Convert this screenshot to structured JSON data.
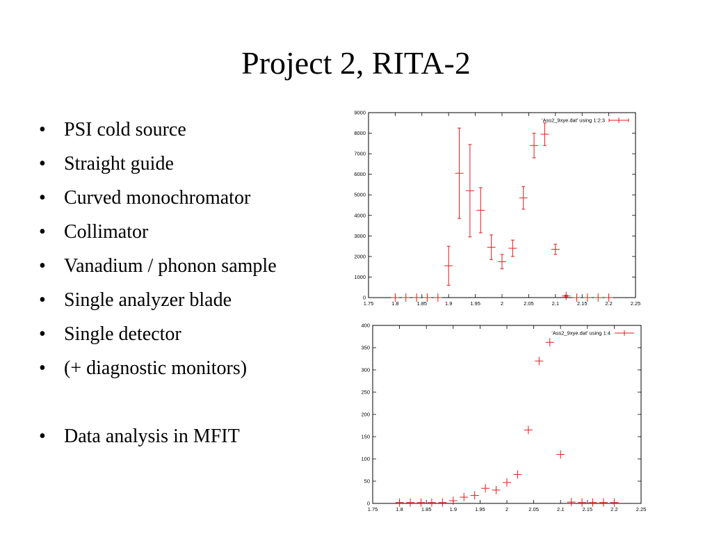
{
  "slide": {
    "title": "Project 2, RITA-2",
    "bullet_glyph": "•",
    "bullets": [
      "PSI cold source",
      "Straight guide",
      "Curved monochromator",
      "Collimator",
      "Vanadium / phonon sample",
      "Single analyzer blade",
      "Single detector",
      "(+ diagnostic monitors)",
      "Data analysis in MFIT"
    ]
  },
  "chart_data": [
    {
      "type": "scatter",
      "title": "",
      "xlabel": "",
      "ylabel": "",
      "legend": "'Ass2_9xye.dat' using 1:2:3",
      "legend_position": "top-right",
      "error_bars": true,
      "grid": false,
      "color": "#e41a1c",
      "xlim": [
        1.75,
        2.25
      ],
      "ylim": [
        0,
        9000
      ],
      "x_ticks": [
        "1.75",
        "1.8",
        "1.85",
        "1.9",
        "1.95",
        "2",
        "2.05",
        "2.1",
        "2.15",
        "2.2",
        "2.25"
      ],
      "y_ticks": [
        "0",
        "1000",
        "2000",
        "3000",
        "4000",
        "5000",
        "6000",
        "7000",
        "8000",
        "9000"
      ],
      "points": [
        {
          "x": 1.8,
          "y": 0,
          "err": 0
        },
        {
          "x": 1.82,
          "y": 0,
          "err": 0
        },
        {
          "x": 1.84,
          "y": 0,
          "err": 0
        },
        {
          "x": 1.86,
          "y": 0,
          "err": 0
        },
        {
          "x": 1.88,
          "y": 0,
          "err": 0
        },
        {
          "x": 1.9,
          "y": 1550,
          "err": 950
        },
        {
          "x": 1.92,
          "y": 6050,
          "err": 2200
        },
        {
          "x": 1.94,
          "y": 5200,
          "err": 2250
        },
        {
          "x": 1.96,
          "y": 4250,
          "err": 1100
        },
        {
          "x": 1.98,
          "y": 2450,
          "err": 600
        },
        {
          "x": 2.0,
          "y": 1750,
          "err": 350
        },
        {
          "x": 2.02,
          "y": 2400,
          "err": 400
        },
        {
          "x": 2.04,
          "y": 4850,
          "err": 550
        },
        {
          "x": 2.06,
          "y": 7400,
          "err": 600
        },
        {
          "x": 2.08,
          "y": 7950,
          "err": 550
        },
        {
          "x": 2.1,
          "y": 2350,
          "err": 250
        },
        {
          "x": 2.12,
          "y": 80,
          "err": 40
        },
        {
          "x": 2.14,
          "y": 0,
          "err": 0
        },
        {
          "x": 2.16,
          "y": 0,
          "err": 0
        },
        {
          "x": 2.18,
          "y": 0,
          "err": 0
        },
        {
          "x": 2.2,
          "y": 0,
          "err": 0
        }
      ]
    },
    {
      "type": "scatter",
      "title": "",
      "xlabel": "",
      "ylabel": "",
      "legend": "'Ass2_9xye.dat' using 1:4",
      "legend_position": "top-right",
      "error_bars": false,
      "grid": false,
      "color": "#e41a1c",
      "xlim": [
        1.75,
        2.25
      ],
      "ylim": [
        0,
        400
      ],
      "x_ticks": [
        "1.75",
        "1.8",
        "1.85",
        "1.9",
        "1.95",
        "2",
        "2.05",
        "2.1",
        "2.15",
        "2.2",
        "2.25"
      ],
      "y_ticks": [
        "0",
        "50",
        "100",
        "150",
        "200",
        "250",
        "300",
        "350",
        "400"
      ],
      "points": [
        {
          "x": 1.8,
          "y": 2
        },
        {
          "x": 1.82,
          "y": 2
        },
        {
          "x": 1.84,
          "y": 2
        },
        {
          "x": 1.86,
          "y": 2
        },
        {
          "x": 1.88,
          "y": 2
        },
        {
          "x": 1.9,
          "y": 6
        },
        {
          "x": 1.92,
          "y": 14
        },
        {
          "x": 1.94,
          "y": 18
        },
        {
          "x": 1.96,
          "y": 34
        },
        {
          "x": 1.98,
          "y": 30
        },
        {
          "x": 2.0,
          "y": 47
        },
        {
          "x": 2.02,
          "y": 65
        },
        {
          "x": 2.04,
          "y": 165
        },
        {
          "x": 2.06,
          "y": 320
        },
        {
          "x": 2.08,
          "y": 362
        },
        {
          "x": 2.1,
          "y": 110
        },
        {
          "x": 2.12,
          "y": 3
        },
        {
          "x": 2.14,
          "y": 2
        },
        {
          "x": 2.16,
          "y": 2
        },
        {
          "x": 2.18,
          "y": 2
        },
        {
          "x": 2.2,
          "y": 2
        }
      ]
    }
  ]
}
